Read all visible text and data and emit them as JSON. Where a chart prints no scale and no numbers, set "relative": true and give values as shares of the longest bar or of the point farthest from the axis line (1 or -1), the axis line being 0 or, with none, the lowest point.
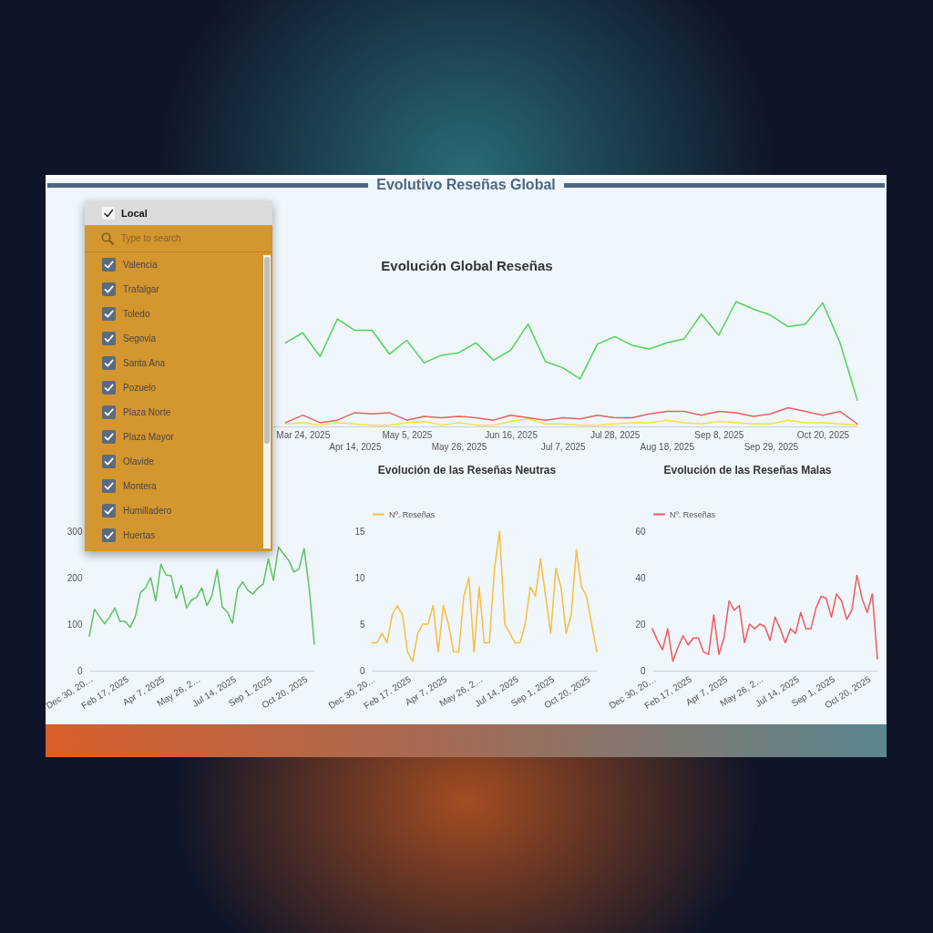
{
  "chart_data": [
    {
      "type": "other",
      "title": "Evolutivo Reseñas Global"
    },
    {
      "type": "other",
      "title": "Local",
      "subtitle": "Type to search",
      "annotations": [
        "Valencia",
        "Trafalgar",
        "Toledo",
        "Segovia",
        "Santa Ana",
        "Pozuelo",
        "Plaza Norte",
        "Plaza Mayor",
        "Olavide",
        "Montera",
        "Humilladero",
        "Huertas"
      ]
    },
    {
      "type": "line",
      "title": "Evolución Global Reseñas",
      "relative": true,
      "categories": [
        null,
        null,
        null,
        null,
        null,
        null,
        null,
        null,
        null,
        null,
        null,
        null,
        "Mar 24, 2025",
        null,
        null,
        "Apr 14, 2025",
        null,
        null,
        "May 5, 2025",
        null,
        null,
        "May 26, 2025",
        null,
        null,
        "Jun 16, 2025",
        null,
        null,
        "Jul 7, 2025",
        null,
        null,
        "Jul 28, 2025",
        null,
        null,
        "Aug 18, 2025",
        null,
        null,
        "Sep 8, 2025",
        null,
        null,
        "Sep 29, 2025",
        null,
        null,
        "Oct 20, 2025",
        null,
        null
      ],
      "series": [
        {
          "color": "#52d452",
          "values": [
            null,
            null,
            null,
            null,
            null,
            null,
            null,
            null,
            null,
            null,
            null,
            0.67,
            0.75,
            0.56,
            0.86,
            0.77,
            0.77,
            0.58,
            0.69,
            0.51,
            0.57,
            0.59,
            0.67,
            0.53,
            0.61,
            0.82,
            0.52,
            0.47,
            0.38,
            0.66,
            0.72,
            0.65,
            0.62,
            0.67,
            0.7,
            0.9,
            0.73,
            1,
            0.94,
            0.89,
            0.8,
            0.82,
            0.99,
            0.67,
            0.21
          ]
        },
        {
          "color": "#f5e23c",
          "values": [
            null,
            null,
            null,
            null,
            null,
            null,
            null,
            null,
            null,
            null,
            null,
            0.02,
            0.03,
            0.01,
            0.03,
            0.02,
            0.01,
            0.01,
            0.03,
            0.04,
            0.01,
            0.03,
            0.01,
            0.01,
            0.04,
            0.06,
            0.02,
            0.02,
            0.01,
            0.01,
            0.02,
            0.03,
            0.03,
            0.05,
            0.03,
            0.02,
            0.04,
            0.03,
            0.02,
            0.02,
            0.05,
            0.03,
            0.03,
            0.02,
            0.01
          ]
        },
        {
          "color": "#e8615f",
          "values": [
            null,
            null,
            null,
            null,
            null,
            null,
            null,
            null,
            null,
            null,
            null,
            0.03,
            0.09,
            0.03,
            0.05,
            0.11,
            0.1,
            0.11,
            0.05,
            0.08,
            0.07,
            0.08,
            0.07,
            0.05,
            0.09,
            0.07,
            0.05,
            0.07,
            0.06,
            0.09,
            0.07,
            0.07,
            0.1,
            0.12,
            0.12,
            0.09,
            0.12,
            0.11,
            0.08,
            0.1,
            0.15,
            0.12,
            0.09,
            0.12,
            0.02
          ]
        }
      ]
    },
    {
      "type": "line",
      "categories": [
        "Dec 30, 20…",
        null,
        null,
        null,
        null,
        null,
        null,
        "Feb 17, 2025",
        null,
        null,
        null,
        null,
        null,
        null,
        "Apr 7, 2025",
        null,
        null,
        null,
        null,
        null,
        null,
        "May 26, 2…",
        null,
        null,
        null,
        null,
        null,
        null,
        "Jul 14, 2025",
        null,
        null,
        null,
        null,
        null,
        null,
        "Sep 1, 2025",
        null,
        null,
        null,
        null,
        null,
        null,
        "Oct 20, 2025",
        null,
        null
      ],
      "series": [
        {
          "color": "#5ec35e",
          "values": [
            74,
            132,
            116,
            101,
            116,
            135,
            106,
            106,
            93,
            116,
            168,
            178,
            200,
            150,
            229,
            206,
            204,
            155,
            184,
            135,
            152,
            158,
            178,
            140,
            162,
            217,
            137,
            126,
            102,
            175,
            191,
            173,
            165,
            178,
            186,
            240,
            194,
            266,
            251,
            237,
            212,
            219,
            263,
            177,
            57
          ]
        }
      ],
      "ylim": [
        0,
        300
      ],
      "yticks": [
        0,
        100,
        200,
        300
      ]
    },
    {
      "type": "line",
      "title": "Evolución de las Reseñas Neutras",
      "categories": [
        "Dec 30, 20…",
        null,
        null,
        null,
        null,
        null,
        null,
        "Feb 17, 2025",
        null,
        null,
        null,
        null,
        null,
        null,
        "Apr 7, 2025",
        null,
        null,
        null,
        null,
        null,
        null,
        "May 26, 2…",
        null,
        null,
        null,
        null,
        null,
        null,
        "Jul 14, 2025",
        null,
        null,
        null,
        null,
        null,
        null,
        "Sep 1, 2025",
        null,
        null,
        null,
        null,
        null,
        null,
        "Oct 20, 2025",
        null,
        null
      ],
      "series": [
        {
          "name": "Nº. Reseñas",
          "color": "#fbbc3e",
          "values": [
            3,
            3,
            4,
            3,
            6,
            7,
            6,
            2,
            1,
            4,
            5,
            5,
            7,
            2,
            7,
            5,
            2,
            2,
            8,
            10,
            2,
            9,
            3,
            3,
            11,
            15,
            5,
            4,
            3,
            3,
            5,
            9,
            8,
            12,
            8,
            4,
            11,
            9,
            4,
            6,
            13,
            9,
            8,
            5,
            2
          ]
        }
      ],
      "ylim": [
        0,
        15
      ],
      "yticks": [
        0,
        5,
        10,
        15
      ],
      "legend": "top left"
    },
    {
      "type": "line",
      "title": "Evolución de las Reseñas Malas",
      "categories": [
        "Dec 30, 20…",
        null,
        null,
        null,
        null,
        null,
        null,
        "Feb 17, 2025",
        null,
        null,
        null,
        null,
        null,
        null,
        "Apr 7, 2025",
        null,
        null,
        null,
        null,
        null,
        null,
        "May 26, 2…",
        null,
        null,
        null,
        null,
        null,
        null,
        "Jul 14, 2025",
        null,
        null,
        null,
        null,
        null,
        null,
        "Sep 1, 2025",
        null,
        null,
        null,
        null,
        null,
        null,
        "Oct 20, 2025",
        null,
        null
      ],
      "series": [
        {
          "name": "Nº. Reseñas",
          "color": "#f05a5a",
          "values": [
            18,
            13,
            9,
            18,
            4,
            10,
            15,
            11,
            14,
            14,
            8,
            7,
            24,
            7,
            14,
            30,
            26,
            28,
            12,
            20,
            18,
            20,
            19,
            13,
            23,
            18,
            12,
            18,
            16,
            25,
            18,
            18,
            27,
            32,
            31,
            23,
            33,
            30,
            22,
            26,
            41,
            31,
            25,
            33,
            5
          ]
        }
      ],
      "ylim": [
        0,
        60
      ],
      "yticks": [
        0,
        20,
        40,
        60
      ],
      "legend": "top left"
    }
  ]
}
